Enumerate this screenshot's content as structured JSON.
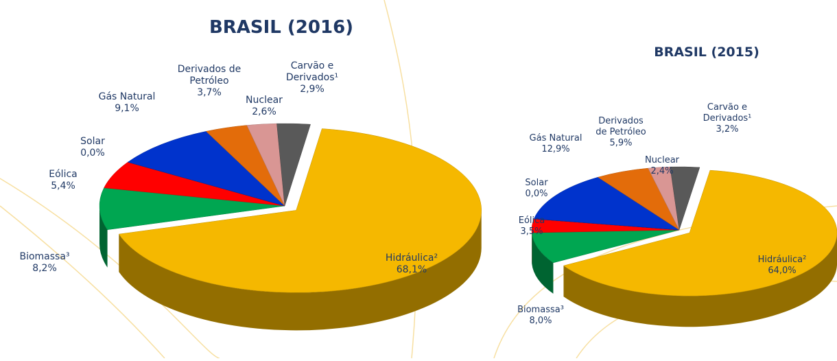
{
  "chart_data": [
    {
      "type": "pie",
      "title": "BRASIL (2016)",
      "categories": [
        "Hidráulica²",
        "Biomassa³",
        "Eólica",
        "Solar",
        "Gás Natural",
        "Derivados de\nPetróleo",
        "Nuclear",
        "Carvão e\nDerivados¹"
      ],
      "values": [
        68.1,
        8.2,
        5.4,
        0.0,
        9.1,
        3.7,
        2.6,
        2.9
      ],
      "value_labels": [
        "68,1%",
        "8,2%",
        "5,4%",
        "0,0%",
        "9,1%",
        "3,7%",
        "2,6%",
        "2,9%"
      ],
      "colors": [
        "#f5b800",
        "#00a651",
        "#ff0000",
        "#333333",
        "#0033cc",
        "#e36c0a",
        "#d99694",
        "#595959"
      ]
    },
    {
      "type": "pie",
      "title": "BRASIL (2015)",
      "categories": [
        "Hidráulica²",
        "Biomassa³",
        "Eólica",
        "Solar",
        "Gás Natural",
        "Derivados\nde Petróleo",
        "Nuclear",
        "Carvão e\nDerivados¹"
      ],
      "values": [
        64.0,
        8.0,
        3.5,
        0.0,
        12.9,
        5.9,
        2.4,
        3.2
      ],
      "value_labels": [
        "64,0%",
        "8,0%",
        "3,5%",
        "0,0%",
        "12,9%",
        "5,9%",
        "2,4%",
        "3,2%"
      ],
      "colors": [
        "#f5b800",
        "#00a651",
        "#ff0000",
        "#333333",
        "#0033cc",
        "#e36c0a",
        "#d99694",
        "#595959"
      ]
    }
  ]
}
